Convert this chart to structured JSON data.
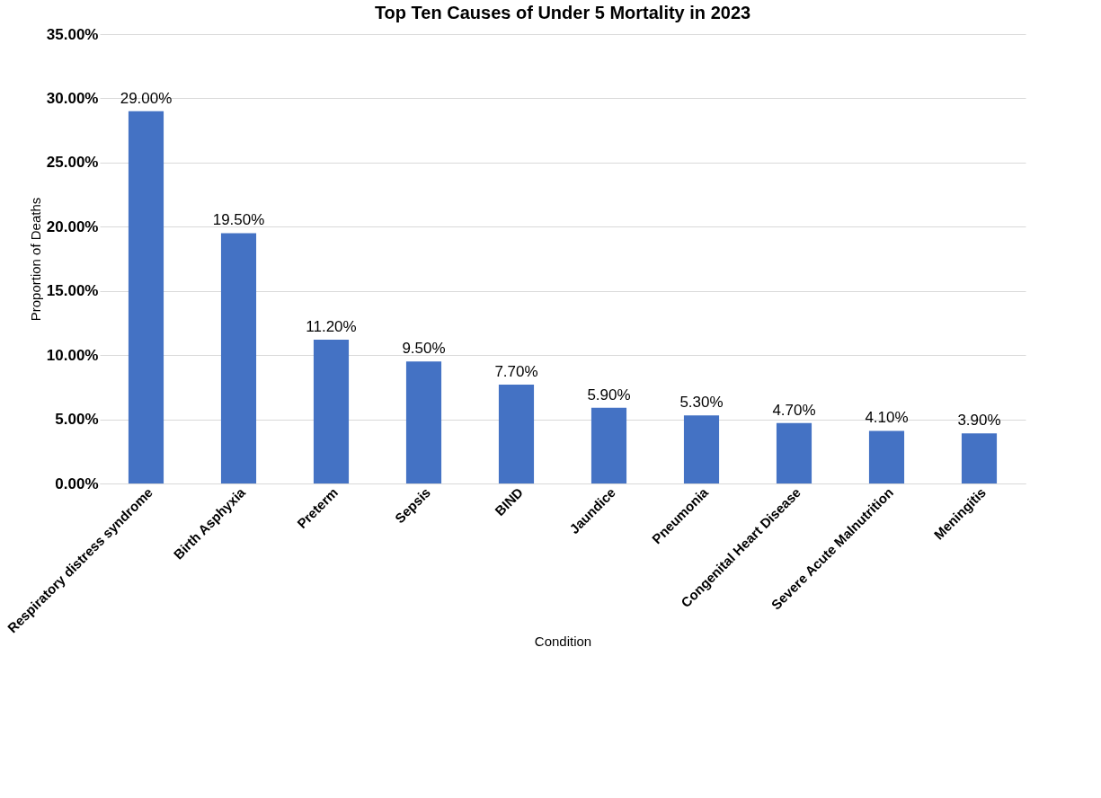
{
  "chart_data": {
    "type": "bar",
    "title": "Top Ten Causes of Under 5 Mortality in 2023",
    "xlabel": "Condition",
    "ylabel": "Proportion of Deaths",
    "categories": [
      "Respiratory distress syndrome",
      "Birth Asphyxia",
      "Preterm",
      "Sepsis",
      "BIND",
      "Jaundice",
      "Pneumonia",
      "Congenital Heart Disease",
      "Severe Acute Malnutrition",
      "Meningitis"
    ],
    "values": [
      29.0,
      19.5,
      11.2,
      9.5,
      7.7,
      5.9,
      5.3,
      4.7,
      4.1,
      3.9
    ],
    "value_labels": [
      "29.00%",
      "19.50%",
      "11.20%",
      "9.50%",
      "7.70%",
      "5.90%",
      "5.30%",
      "4.70%",
      "4.10%",
      "3.90%"
    ],
    "color": "#4472c4",
    "ylim": [
      0,
      35
    ],
    "yticks": [
      {
        "value": 0,
        "label": "0.00%"
      },
      {
        "value": 5,
        "label": "5.00%"
      },
      {
        "value": 10,
        "label": "10.00%"
      },
      {
        "value": 15,
        "label": "15.00%"
      },
      {
        "value": 20,
        "label": "20.00%"
      },
      {
        "value": 25,
        "label": "25.00%"
      },
      {
        "value": 30,
        "label": "30.00%"
      },
      {
        "value": 35,
        "label": "35.00%"
      }
    ],
    "grid": "y"
  }
}
